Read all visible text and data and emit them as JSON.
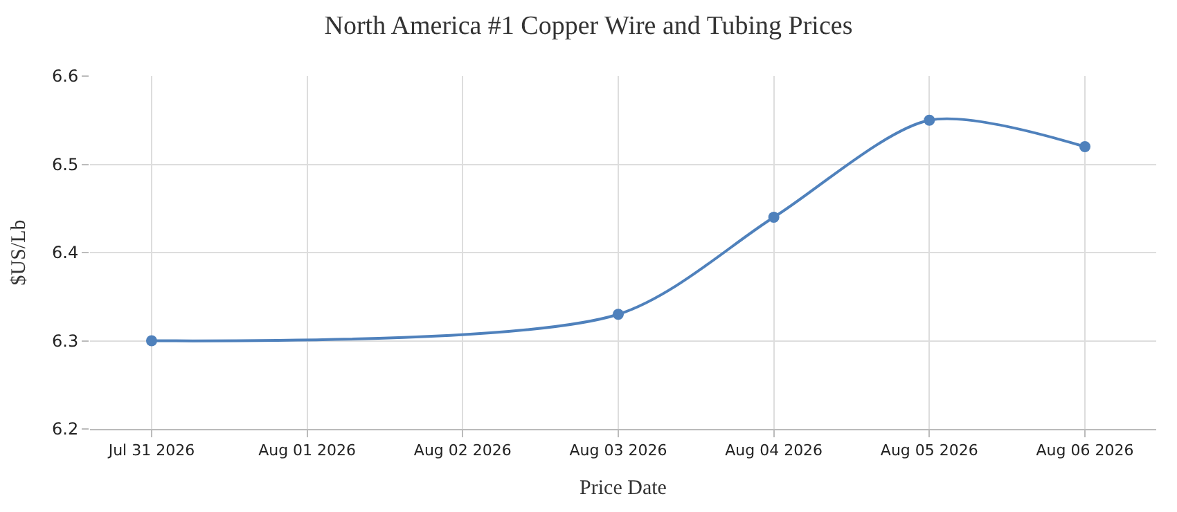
{
  "chart_data": {
    "type": "line",
    "title": "North America #1 Copper Wire and Tubing Prices",
    "xlabel": "Price Date",
    "ylabel": "$US/Lb",
    "x": [
      "2026-07-31",
      "2026-08-03",
      "2026-08-04",
      "2026-08-05",
      "2026-08-06"
    ],
    "series": [
      {
        "color": "#4f81bc",
        "values": [
          6.3,
          6.33,
          6.44,
          6.55,
          6.52
        ]
      }
    ],
    "xlim": [
      "2026-07-30T14:30",
      "2026-08-06T11:00"
    ],
    "xticks": [
      {
        "value": "2026-07-31",
        "label": "Jul 31 2026"
      },
      {
        "value": "2026-08-01",
        "label": "Aug 01 2026"
      },
      {
        "value": "2026-08-02",
        "label": "Aug 02 2026"
      },
      {
        "value": "2026-08-03",
        "label": "Aug 03 2026"
      },
      {
        "value": "2026-08-04",
        "label": "Aug 04 2026"
      },
      {
        "value": "2026-08-05",
        "label": "Aug 05 2026"
      },
      {
        "value": "2026-08-06",
        "label": "Aug 06 2026"
      }
    ],
    "ylim": [
      6.2,
      6.6
    ],
    "yticks": [
      6.2,
      6.3,
      6.4,
      6.5,
      6.6
    ],
    "grid": true,
    "marker": "circle",
    "line_style": "solid"
  }
}
